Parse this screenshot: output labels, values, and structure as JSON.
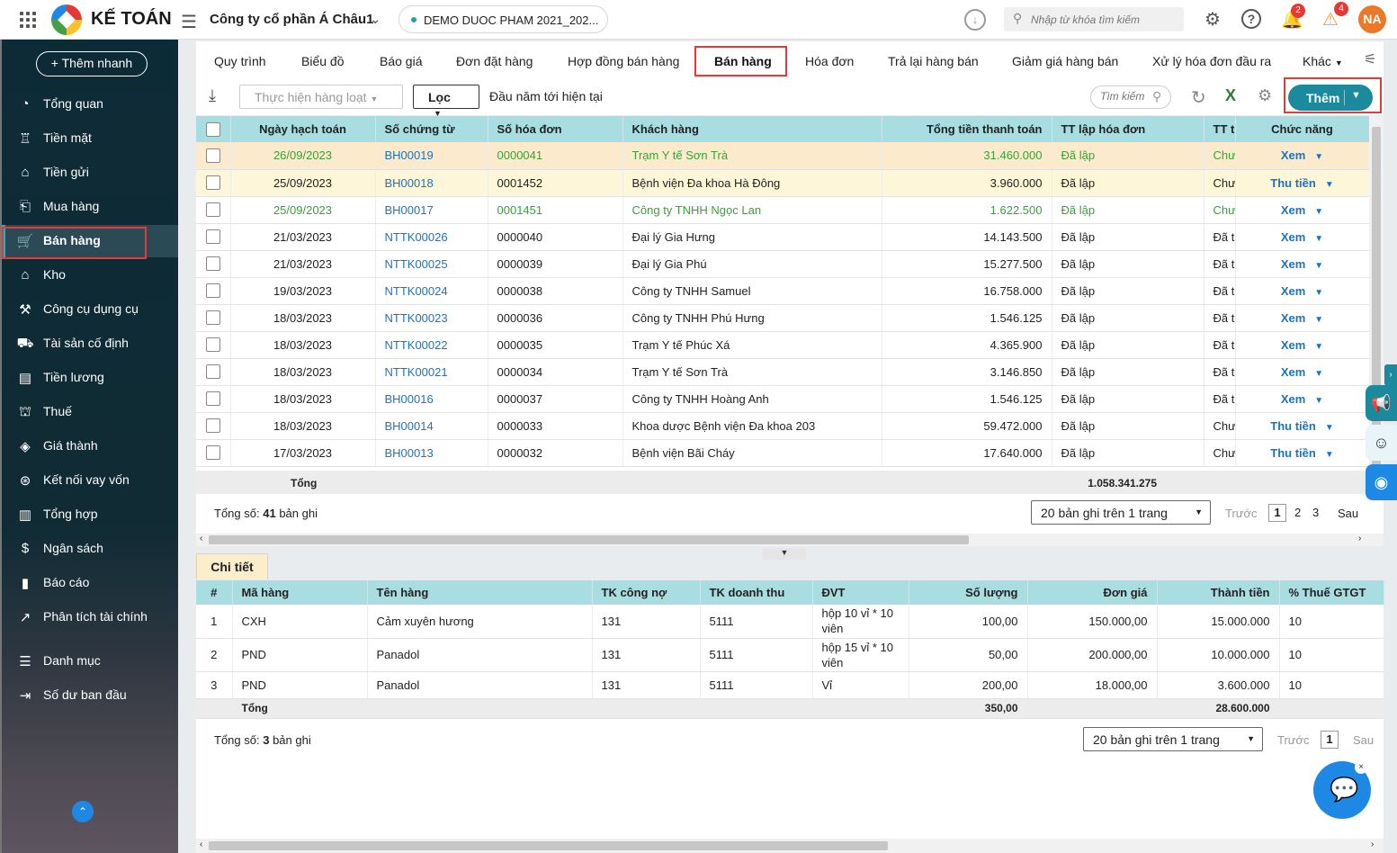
{
  "app": {
    "brand": "KẾ TOÁN",
    "company": "Công ty cổ phần Á Châu1",
    "database": "DEMO DUOC PHAM 2021_202...",
    "avatar_initials": "NA"
  },
  "top": {
    "search_placeholder": "Nhập từ khóa tìm kiếm",
    "notif_count": "2",
    "alerts_count": "4"
  },
  "sidebar": {
    "quick_add": "+ Thêm nhanh",
    "items": [
      {
        "label": "Tổng quan",
        "icon": "dashboard-icon"
      },
      {
        "label": "Tiền mặt",
        "icon": "cash-icon"
      },
      {
        "label": "Tiền gửi",
        "icon": "bank-icon"
      },
      {
        "label": "Mua hàng",
        "icon": "purchase-icon"
      },
      {
        "label": "Bán hàng",
        "icon": "cart-icon"
      },
      {
        "label": "Kho",
        "icon": "warehouse-icon"
      },
      {
        "label": "Công cụ dụng cụ",
        "icon": "tools-icon"
      },
      {
        "label": "Tài sản cố định",
        "icon": "asset-icon"
      },
      {
        "label": "Tiền lương",
        "icon": "salary-icon"
      },
      {
        "label": "Thuế",
        "icon": "tax-icon"
      },
      {
        "label": "Giá thành",
        "icon": "cost-icon"
      },
      {
        "label": "Kết nối vay vốn",
        "icon": "loan-icon"
      },
      {
        "label": "Tổng hợp",
        "icon": "summary-icon"
      },
      {
        "label": "Ngân sách",
        "icon": "budget-icon"
      },
      {
        "label": "Báo cáo",
        "icon": "report-icon"
      },
      {
        "label": "Phân tích tài chính",
        "icon": "analytics-icon"
      },
      {
        "label": "Danh mục",
        "icon": "list-icon"
      },
      {
        "label": "Số dư ban đầu",
        "icon": "opening-balance-icon"
      }
    ]
  },
  "tabs": [
    "Quy trình",
    "Biểu đồ",
    "Báo giá",
    "Đơn đặt hàng",
    "Hợp đồng bán hàng",
    "Bán hàng",
    "Hóa đơn",
    "Trả lại hàng bán",
    "Giảm giá hàng bán",
    "Xử lý hóa đơn đầu ra",
    "Khác"
  ],
  "toolbar": {
    "batch": "Thực hiện hàng loạt",
    "filter": "Lọc",
    "period": "Đầu năm tới hiện tại",
    "search_placeholder": "Tìm kiếm",
    "add": "Thêm"
  },
  "main_table": {
    "columns": [
      "Ngày hạch toán",
      "Số chứng từ",
      "Số hóa đơn",
      "Khách hàng",
      "Tổng tiền thanh toán",
      "TT lập hóa đơn",
      "TT th",
      "Chức năng"
    ],
    "rows": [
      {
        "date": "26/09/2023",
        "doc": "BH00019",
        "inv": "0000041",
        "customer": "Trạm Y tế Sơn Trà",
        "total": "31.460.000",
        "inv_status": "Đã lập",
        "pay": "Chưa",
        "action": "Xem"
      },
      {
        "date": "25/09/2023",
        "doc": "BH00018",
        "inv": "0001452",
        "customer": "Bệnh viện Đa khoa Hà Đông",
        "total": "3.960.000",
        "inv_status": "Đã lập",
        "pay": "Chưa",
        "action": "Thu tiền"
      },
      {
        "date": "25/09/2023",
        "doc": "BH00017",
        "inv": "0001451",
        "customer": "Công ty TNHH Ngọc Lan",
        "total": "1.622.500",
        "inv_status": "Đã lập",
        "pay": "Chưa",
        "action": "Xem"
      },
      {
        "date": "21/03/2023",
        "doc": "NTTK00026",
        "inv": "0000040",
        "customer": "Đại lý Gia Hưng",
        "total": "14.143.500",
        "inv_status": "Đã lập",
        "pay": "Đã tl",
        "action": "Xem"
      },
      {
        "date": "21/03/2023",
        "doc": "NTTK00025",
        "inv": "0000039",
        "customer": "Đại lý Gia Phú",
        "total": "15.277.500",
        "inv_status": "Đã lập",
        "pay": "Đã tl",
        "action": "Xem"
      },
      {
        "date": "19/03/2023",
        "doc": "NTTK00024",
        "inv": "0000038",
        "customer": "Công ty TNHH Samuel",
        "total": "16.758.000",
        "inv_status": "Đã lập",
        "pay": "Đã tl",
        "action": "Xem"
      },
      {
        "date": "18/03/2023",
        "doc": "NTTK00023",
        "inv": "0000036",
        "customer": "Công ty TNHH Phú Hưng",
        "total": "1.546.125",
        "inv_status": "Đã lập",
        "pay": "Đã tl",
        "action": "Xem"
      },
      {
        "date": "18/03/2023",
        "doc": "NTTK00022",
        "inv": "0000035",
        "customer": "Trạm Y tế Phúc Xá",
        "total": "4.365.900",
        "inv_status": "Đã lập",
        "pay": "Đã tl",
        "action": "Xem"
      },
      {
        "date": "18/03/2023",
        "doc": "NTTK00021",
        "inv": "0000034",
        "customer": "Trạm Y tế Sơn Trà",
        "total": "3.146.850",
        "inv_status": "Đã lập",
        "pay": "Đã tl",
        "action": "Xem"
      },
      {
        "date": "18/03/2023",
        "doc": "BH00016",
        "inv": "0000037",
        "customer": "Công ty TNHH Hoàng Anh",
        "total": "1.546.125",
        "inv_status": "Đã lập",
        "pay": "Đã tl",
        "action": "Xem"
      },
      {
        "date": "18/03/2023",
        "doc": "BH00014",
        "inv": "0000033",
        "customer": "Khoa dược Bệnh viện Đa khoa 203",
        "total": "59.472.000",
        "inv_status": "Đã lập",
        "pay": "Chưa",
        "action": "Thu tiền"
      },
      {
        "date": "17/03/2023",
        "doc": "BH00013",
        "inv": "0000032",
        "customer": "Bệnh viện Bãi Cháy",
        "total": "17.640.000",
        "inv_status": "Đã lập",
        "pay": "Chưa",
        "action": "Thu tiền"
      }
    ],
    "sum_label": "Tổng",
    "sum_total": "1.058.341.275",
    "count_prefix": "Tổng số:",
    "count": "41",
    "count_suffix": "bản ghi",
    "page_size": "20 bản ghi trên 1 trang",
    "prev": "Trước",
    "next": "Sau",
    "pages": [
      "1",
      "2",
      "3"
    ]
  },
  "detail": {
    "tab": "Chi tiết",
    "columns": [
      "#",
      "Mã hàng",
      "Tên hàng",
      "TK công nợ",
      "TK doanh thu",
      "ĐVT",
      "Số lượng",
      "Đơn giá",
      "Thành tiền",
      "% Thuế GTGT"
    ],
    "rows": [
      {
        "no": "1",
        "code": "CXH",
        "name": "Cảm xuyên hương",
        "debt": "131",
        "rev": "5111",
        "unit": "hộp 10 vỉ * 10 viên",
        "qty": "100,00",
        "price": "150.000,00",
        "amount": "15.000.000",
        "vat": "10"
      },
      {
        "no": "2",
        "code": "PND",
        "name": "Panadol",
        "debt": "131",
        "rev": "5111",
        "unit": "hộp 15 vỉ * 10 viên",
        "qty": "50,00",
        "price": "200.000,00",
        "amount": "10.000.000",
        "vat": "10"
      },
      {
        "no": "3",
        "code": "PND",
        "name": "Panadol",
        "debt": "131",
        "rev": "5111",
        "unit": "Vỉ",
        "qty": "200,00",
        "price": "18.000,00",
        "amount": "3.600.000",
        "vat": "10"
      }
    ],
    "sum_label": "Tổng",
    "sum_qty": "350,00",
    "sum_amount": "28.600.000",
    "count_prefix": "Tổng số:",
    "count": "3",
    "count_suffix": "bản ghi",
    "page_size": "20 bản ghi trên 1 trang",
    "prev": "Trước",
    "next": "Sau",
    "page": "1"
  },
  "colors": {
    "accent": "#1a8a9c",
    "header_bg": "#a8dde2",
    "highlight_red": "#e53935",
    "link_blue": "#1a73c5",
    "green_text": "#3aa13a"
  }
}
